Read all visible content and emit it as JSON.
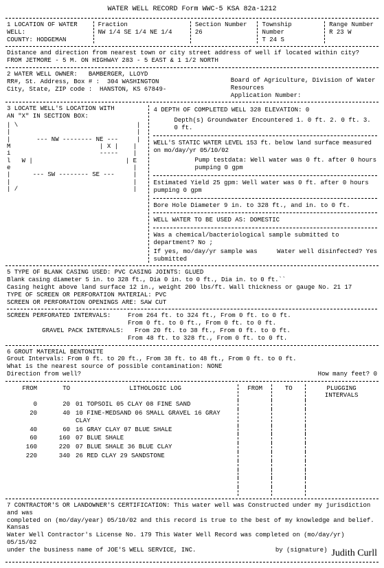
{
  "title": "WATER WELL RECORD  Form WWC-5  KSA 82a-1212",
  "s1": {
    "heading": "1 LOCATION OF WATER WELL:",
    "county_label": "COUNTY:",
    "county": "HODGEMAN",
    "fraction_label": "Fraction",
    "fraction": "NW    1/4 SE    1/4 NE    1/4",
    "section_label": "Section Number",
    "section": "26",
    "township_label": "Township Number",
    "township": "T 24     S",
    "range_label": "Range Number",
    "range": "R 23    W",
    "dist_label": "Distance and direction from nearest town or city street address of well if located within city?",
    "dist": "FROM JETMORE - 5 M. ON HIGHWAY 283 - 5 EAST & 1 1/2 NORTH"
  },
  "s2": {
    "heading": "2 WATER WELL OWNER:",
    "name": "BAMBERGER, LLOYD",
    "addr_label": "RR#, St. Address, Box # :",
    "addr": "304 WASHINGTON",
    "city_label": "City, State, ZIP code   :",
    "city": "HANSTON, KS    67849-",
    "board": "Board of Agriculture, Division of Water Resources",
    "appnum": "Application Number:"
  },
  "s3": {
    "heading": "3 LOCATE WELL'S LOCATION WITH",
    "heading2": "AN \"X\" IN SECTION BOX:",
    "grid": "| \\                                |\n|                                  |\n|       --- NW -------- NE ---     |\nM                        | X |    |\ni                        -----    |\nl   W |                         | E\ne                                 |\n|      --- SW -------- SE ---     |\n|                                 |\n| /                               |"
  },
  "s4": {
    "depth_line": "4 DEPTH OF COMPLETED WELL    328        ELEVATION:    0",
    "gw_line": "Depth(s) Groundwater Encountered    1.        0 ft.    2.        0 ft.    3.        0 ft.",
    "static": "WELL'S STATIC WATER LEVEL   153 ft. below land surface measured on mo/day/yr  05/10/02",
    "pump": "Pump testdata:  Well water was        0 ft. after     0 hours pumping      0 gpm",
    "yield": "Estimated Yield     25 gpm: Well water was        0 ft. after     0 hours pumping      0 gpm",
    "bore": "Bore Hole Diameter        9     in. to    328 ft., and       in. to        0 ft.",
    "use": "WELL WATER TO BE USED AS: DOMESTIC",
    "chem1": "Was a chemical/bacteriological sample submitted to department? No ;",
    "chem2": "If yes, mo/day/yr sample was submitted",
    "disinf": "Water well disinfected? Yes"
  },
  "s5": {
    "heading": "5 TYPE OF BLANK CASING USED: PVC               CASING JOINTS: GLUED",
    "l1": "Blank casing diameter       5    in. to    328 ft., Dia        0   in. to      0 ft., Dia         in. to      0 ft.``",
    "l2": "Casing height above land surface    12 in.,       weight    200 lbs/ft.  Wall thickness or gauge No. 21 17",
    "l3": "TYPE OF SCREEN OR PERFORATION MATERIAL: PVC",
    "l4": "SCREEN OR PERFORATION OPENINGS ARE:     SAW CUT",
    "perf_h": "SCREEN PERFORATED INTERVALS:",
    "perf1": "From    264 ft. to    324 ft., From       0 ft. to      0 ft.",
    "perf2": "From      0 ft. to      0 ft., From       0 ft. to      0 ft.",
    "grav_h": "GRAVEL PACK INTERVALS:",
    "grav1": "From     20 ft. to     38 ft., From       0 ft. to      0 ft.",
    "grav2": "From     48 ft. to    328 ft., From       0 ft. to      0 ft."
  },
  "s6": {
    "heading": "6 GROUT MATERIAL   BENTONITE",
    "l1": "Grout Intervals: From      0 ft. to     20 ft., From      38 ft. to     48 ft., From      0 ft. to      0 ft.",
    "l2": "What is the nearest source of possible contamination: NONE",
    "l3a": "Direction from well?",
    "l3b": "How many feet?     0"
  },
  "lith": {
    "h_from": "FROM",
    "h_to": "TO",
    "h_log": "LITHOLOGIC LOG",
    "h_pfrom": "FROM",
    "h_pto": "TO",
    "h_plug": "PLUGGING INTERVALS",
    "rows": [
      {
        "f": "0",
        "t": "20",
        "d": "01 TOPSOIL 05 CLAY 08 FINE SAND"
      },
      {
        "f": "20",
        "t": "40",
        "d": "10 FINE-MEDSAND 06 SMALL GRAVEL 16 GRAY CLAY"
      },
      {
        "f": "40",
        "t": "60",
        "d": "16 GRAY CLAY 07 BLUE SHALE"
      },
      {
        "f": "60",
        "t": "160",
        "d": "07 BLUE SHALE"
      },
      {
        "f": "160",
        "t": "220",
        "d": "07 BLUE SHALE 36 BLUE CLAY"
      },
      {
        "f": "220",
        "t": "340",
        "d": "26 RED CLAY 29 SANDSTONE"
      }
    ]
  },
  "s7": {
    "l1": "7 CONTRACTOR'S OR LANDOWNER'S CERTIFICATION:  This water well was Constructed under my jurisdiction and was",
    "l2": "completed on (mo/day/year) 05/10/02 and this record is true to the best of my knowledge and belief.  Kansas",
    "l3": "Water Well Contractor's License No. 179       This Water Well Record was completed on (mo/day/yr) 05/15/02",
    "l4a": "under the business name of JOE'S WELL SERVICE, INC.",
    "l4b": "by (signature)",
    "sig": "Judith Curll"
  }
}
